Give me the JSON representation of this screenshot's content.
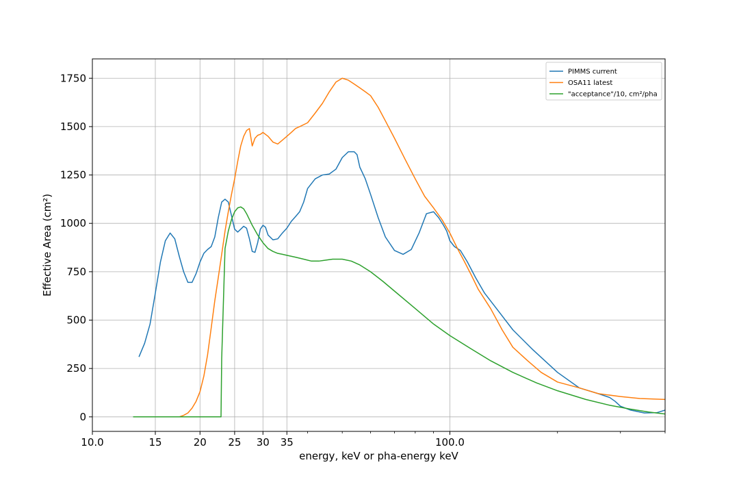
{
  "chart_data": {
    "type": "line",
    "xscale": "log",
    "xlim": [
      10,
      400
    ],
    "ylim": [
      -75,
      1850
    ],
    "xlabel": "energy, keV or pha-energy keV",
    "ylabel": "Effective Area (cm²)",
    "grid": true,
    "legend_position": "top-right",
    "x_ticks": [
      {
        "value": 10,
        "label": "10.0"
      },
      {
        "value": 15,
        "label": "15"
      },
      {
        "value": 20,
        "label": "20"
      },
      {
        "value": 25,
        "label": "25"
      },
      {
        "value": 30,
        "label": "30"
      },
      {
        "value": 35,
        "label": "35"
      },
      {
        "value": 100,
        "label": "100.0"
      }
    ],
    "y_ticks": [
      {
        "value": 0,
        "label": "0"
      },
      {
        "value": 250,
        "label": "250"
      },
      {
        "value": 500,
        "label": "500"
      },
      {
        "value": 750,
        "label": "750"
      },
      {
        "value": 1000,
        "label": "1000"
      },
      {
        "value": 1250,
        "label": "1250"
      },
      {
        "value": 1500,
        "label": "1500"
      },
      {
        "value": 1750,
        "label": "1750"
      }
    ],
    "series": [
      {
        "name": "PIMMS current",
        "color": "#1f77b4",
        "x": [
          13.5,
          14.0,
          14.5,
          15.0,
          15.5,
          16.0,
          16.5,
          17.0,
          17.5,
          18.0,
          18.5,
          19.0,
          19.5,
          20.0,
          20.5,
          21.0,
          21.5,
          22.0,
          22.5,
          23.0,
          23.5,
          24.0,
          24.5,
          25.0,
          25.5,
          26.0,
          26.5,
          27.0,
          27.5,
          28.0,
          28.5,
          29.0,
          29.5,
          30.0,
          30.5,
          31.0,
          32.0,
          33.0,
          34.0,
          35.0,
          36.0,
          37.0,
          38.0,
          39.0,
          40.0,
          42.0,
          44.0,
          46.0,
          48.0,
          50.0,
          52.0,
          54.0,
          55.0,
          56.0,
          57.0,
          58.0,
          60.0,
          63.0,
          66.0,
          70.0,
          74.0,
          78.0,
          82.0,
          86.0,
          90.0,
          93.0,
          96.0,
          98.0,
          100.0,
          103.0,
          107.0,
          112.0,
          118.0,
          125.0,
          135.0,
          150.0,
          170.0,
          200.0,
          230.0,
          260.0,
          280.0,
          290.0,
          300.0,
          320.0,
          350.0,
          380.0,
          400.0
        ],
        "y": [
          310,
          380,
          480,
          640,
          800,
          910,
          950,
          920,
          830,
          750,
          695,
          695,
          740,
          800,
          845,
          865,
          880,
          930,
          1030,
          1110,
          1125,
          1110,
          1040,
          970,
          955,
          970,
          985,
          975,
          920,
          855,
          850,
          900,
          970,
          990,
          980,
          940,
          915,
          920,
          950,
          975,
          1010,
          1035,
          1060,
          1110,
          1180,
          1230,
          1250,
          1255,
          1280,
          1340,
          1370,
          1370,
          1355,
          1290,
          1260,
          1230,
          1150,
          1030,
          930,
          860,
          840,
          865,
          950,
          1050,
          1060,
          1030,
          990,
          960,
          910,
          880,
          860,
          800,
          720,
          640,
          560,
          450,
          350,
          230,
          150,
          120,
          100,
          80,
          55,
          35,
          20,
          22,
          35
        ]
      },
      {
        "name": "OSA11 latest",
        "color": "#ff7f0e",
        "x": [
          17.5,
          18.0,
          18.5,
          19.0,
          19.5,
          20.0,
          20.5,
          21.0,
          21.5,
          22.0,
          22.5,
          23.0,
          23.5,
          24.0,
          24.5,
          25.0,
          25.5,
          26.0,
          26.5,
          27.0,
          27.5,
          28.0,
          28.5,
          29.0,
          29.5,
          30.0,
          31.0,
          32.0,
          33.0,
          34.0,
          35.0,
          36.0,
          37.0,
          38.0,
          40.0,
          42.0,
          44.0,
          46.0,
          48.0,
          50.0,
          52.0,
          54.0,
          56.0,
          58.0,
          60.0,
          63.0,
          66.0,
          70.0,
          75.0,
          80.0,
          85.0,
          90.0,
          95.0,
          100.0,
          105.0,
          110.0,
          115.0,
          120.0,
          130.0,
          140.0,
          150.0,
          165.0,
          180.0,
          200.0,
          230.0,
          260.0,
          300.0,
          340.0,
          400.0
        ],
        "y": [
          0,
          8,
          20,
          45,
          80,
          130,
          210,
          320,
          460,
          600,
          720,
          840,
          960,
          1060,
          1150,
          1230,
          1320,
          1400,
          1450,
          1480,
          1490,
          1400,
          1440,
          1455,
          1460,
          1470,
          1450,
          1420,
          1410,
          1430,
          1450,
          1470,
          1490,
          1500,
          1520,
          1570,
          1620,
          1680,
          1730,
          1750,
          1740,
          1720,
          1700,
          1680,
          1660,
          1600,
          1530,
          1440,
          1330,
          1230,
          1140,
          1080,
          1020,
          950,
          870,
          800,
          730,
          660,
          560,
          450,
          360,
          290,
          230,
          180,
          150,
          120,
          105,
          95,
          90
        ]
      },
      {
        "name": "\"acceptance\"/10, cm²/pha",
        "color": "#2ca02c",
        "x": [
          13.0,
          14.0,
          15.0,
          16.0,
          17.0,
          18.0,
          19.0,
          20.0,
          21.0,
          22.0,
          22.9,
          23.0,
          23.5,
          24.0,
          24.5,
          25.0,
          25.5,
          26.0,
          26.5,
          27.0,
          27.5,
          28.0,
          29.0,
          30.0,
          31.0,
          32.0,
          33.0,
          34.0,
          35.0,
          37.0,
          39.0,
          41.0,
          43.0,
          45.0,
          47.0,
          50.0,
          53.0,
          56.0,
          60.0,
          65.0,
          70.0,
          80.0,
          90.0,
          100.0,
          115.0,
          130.0,
          150.0,
          175.0,
          200.0,
          240.0,
          280.0,
          320.0,
          360.0,
          400.0
        ],
        "y": [
          0,
          0,
          0,
          0,
          0,
          0,
          0,
          0,
          0,
          0,
          0,
          300,
          870,
          960,
          1020,
          1060,
          1080,
          1085,
          1075,
          1050,
          1020,
          990,
          940,
          900,
          870,
          855,
          845,
          840,
          835,
          825,
          815,
          805,
          805,
          810,
          815,
          815,
          805,
          785,
          750,
          700,
          650,
          560,
          480,
          420,
          350,
          290,
          230,
          175,
          135,
          90,
          60,
          40,
          25,
          15
        ]
      }
    ]
  }
}
